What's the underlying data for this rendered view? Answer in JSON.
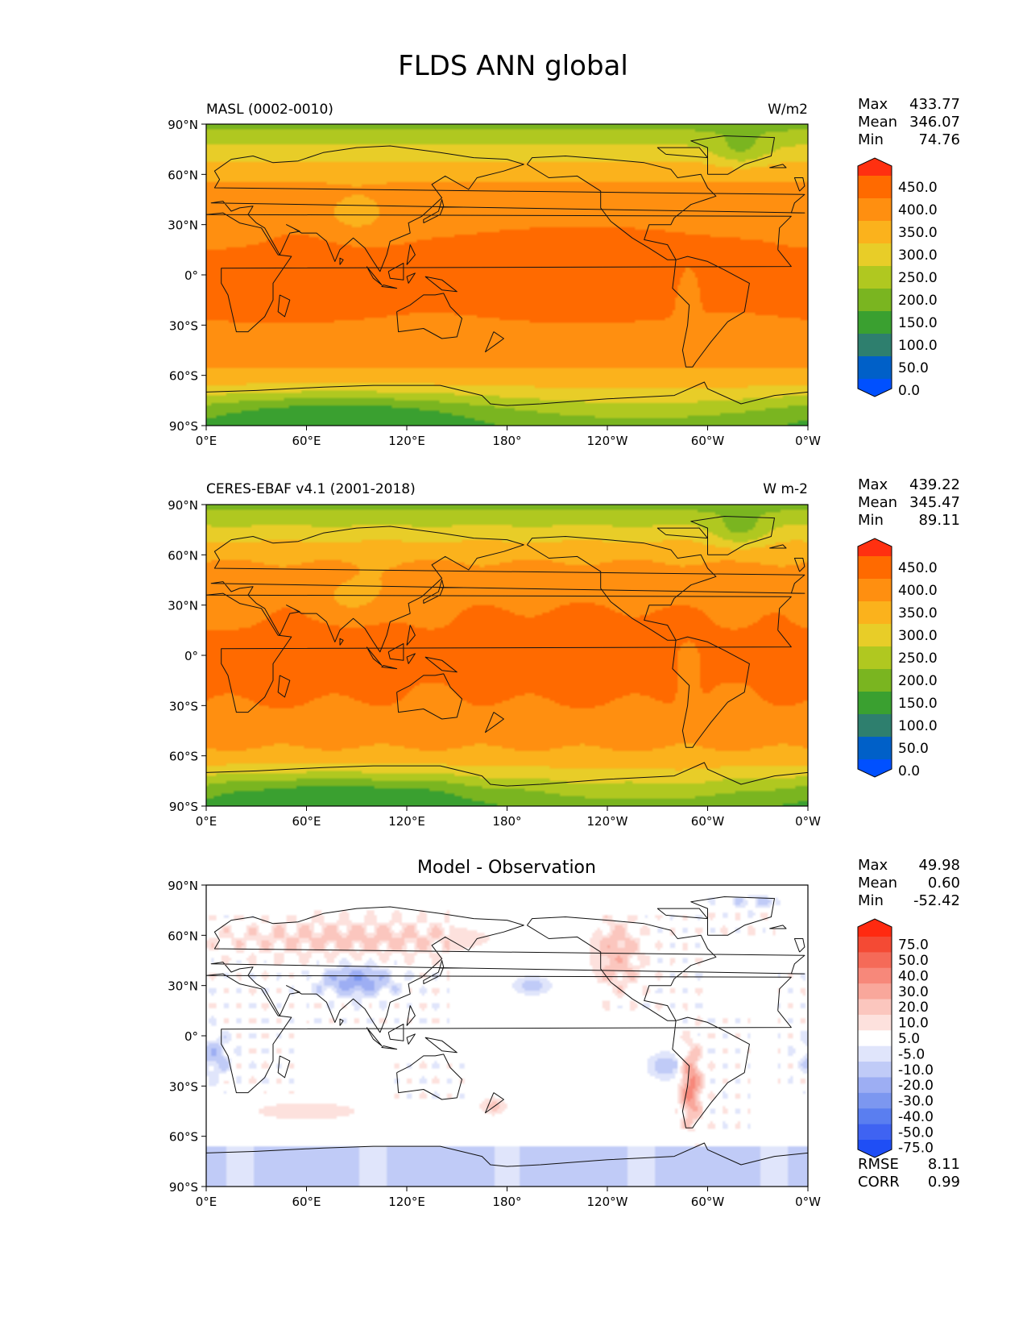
{
  "title": "FLDS ANN global",
  "axes": {
    "lat_ticks": [
      "90°N",
      "60°N",
      "30°N",
      "0°",
      "30°S",
      "60°S",
      "90°S"
    ],
    "lon_ticks": [
      "0°E",
      "60°E",
      "120°E",
      "180°",
      "120°W",
      "60°W",
      "0°W"
    ]
  },
  "palettes": {
    "field": [
      "#0050ff",
      "#0060c8",
      "#2e7f6e",
      "#3aa030",
      "#7ab520",
      "#b0c820",
      "#e8cd28",
      "#fbb21c",
      "#ff8f10",
      "#ff6a00",
      "#ff3010"
    ],
    "diff": [
      "#1f4ef5",
      "#3f63f2",
      "#5a7ef0",
      "#7c97f0",
      "#9daef3",
      "#c0cbf7",
      "#e0e5fb",
      "#ffffff",
      "#fde1dd",
      "#fbc6be",
      "#f9a79b",
      "#f7887a",
      "#f56a58",
      "#f44a34",
      "#ff2a10"
    ]
  },
  "chart_data": [
    {
      "type": "heatmap",
      "name": "model",
      "subtitle_left": "MASL (0002-0010)",
      "subtitle_right": "W/m2",
      "stats": [
        {
          "label": "Max",
          "value": "433.77"
        },
        {
          "label": "Mean",
          "value": "346.07"
        },
        {
          "label": "Min",
          "value": "74.76"
        }
      ],
      "colorbar_ticks": [
        "450.0",
        "400.0",
        "350.0",
        "300.0",
        "250.0",
        "200.0",
        "150.0",
        "100.0",
        "50.0",
        "0.0"
      ],
      "extent": {
        "lon": [
          0,
          360
        ],
        "lat": [
          -90,
          90
        ]
      }
    },
    {
      "type": "heatmap",
      "name": "observation",
      "subtitle_left": "CERES-EBAF v4.1 (2001-2018)",
      "subtitle_right": "W m-2",
      "stats": [
        {
          "label": "Max",
          "value": "439.22"
        },
        {
          "label": "Mean",
          "value": "345.47"
        },
        {
          "label": "Min",
          "value": "89.11"
        }
      ],
      "colorbar_ticks": [
        "450.0",
        "400.0",
        "350.0",
        "300.0",
        "250.0",
        "200.0",
        "150.0",
        "100.0",
        "50.0",
        "0.0"
      ],
      "extent": {
        "lon": [
          0,
          360
        ],
        "lat": [
          -90,
          90
        ]
      }
    },
    {
      "type": "heatmap",
      "name": "difference",
      "title": "Model - Observation",
      "stats": [
        {
          "label": "Max",
          "value": "49.98"
        },
        {
          "label": "Mean",
          "value": "0.60"
        },
        {
          "label": "Min",
          "value": "-52.42"
        }
      ],
      "colorbar_ticks": [
        "75.0",
        "50.0",
        "40.0",
        "30.0",
        "20.0",
        "10.0",
        "5.0",
        "-5.0",
        "-10.0",
        "-20.0",
        "-30.0",
        "-40.0",
        "-50.0",
        "-75.0"
      ],
      "metrics": [
        {
          "label": "RMSE",
          "value": "8.11"
        },
        {
          "label": "CORR",
          "value": "0.99"
        }
      ],
      "extent": {
        "lon": [
          0,
          360
        ],
        "lat": [
          -90,
          90
        ]
      }
    }
  ]
}
